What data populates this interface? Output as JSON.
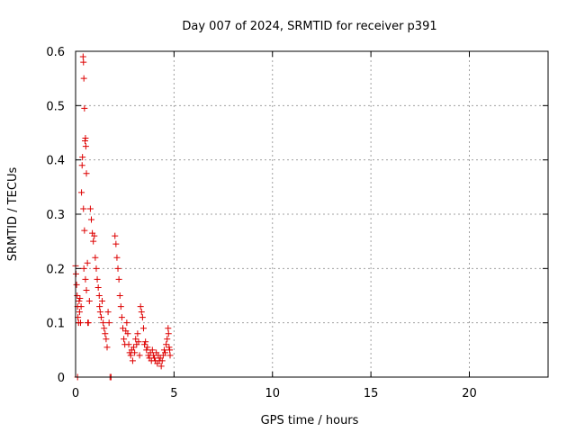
{
  "chart_data": {
    "type": "scatter",
    "title": "Day 007 of 2024, SRMTID for receiver p391",
    "xlabel": "GPS time / hours",
    "ylabel": "SRMTID / TECUs",
    "xlim": [
      0,
      24
    ],
    "ylim": [
      0,
      0.6
    ],
    "xticks": [
      0,
      5,
      10,
      15,
      20
    ],
    "xtick_labels": [
      "0",
      "5",
      "10",
      "15",
      "20"
    ],
    "yticks": [
      0,
      0.1,
      0.2,
      0.3,
      0.4,
      0.5,
      0.6
    ],
    "ytick_labels": [
      "0",
      "0.1",
      "0.2",
      "0.3",
      "0.4",
      "0.5",
      "0.6"
    ],
    "grid": true,
    "marker": "plus",
    "marker_color": "#dd0000",
    "series": [
      {
        "points": [
          [
            0.0,
            0.205
          ],
          [
            0.02,
            0.19
          ],
          [
            0.05,
            0.17
          ],
          [
            0.08,
            0.15
          ],
          [
            0.1,
            0.13
          ],
          [
            0.12,
            0.11
          ],
          [
            0.15,
            0.1
          ],
          [
            0.18,
            0.14
          ],
          [
            0.2,
            0.12
          ],
          [
            0.22,
            0.145
          ],
          [
            0.25,
            0.1
          ],
          [
            0.28,
            0.13
          ],
          [
            0.1,
            0.0
          ],
          [
            0.3,
            0.34
          ],
          [
            0.33,
            0.39
          ],
          [
            0.35,
            0.405
          ],
          [
            0.38,
            0.59
          ],
          [
            0.4,
            0.58
          ],
          [
            0.42,
            0.55
          ],
          [
            0.45,
            0.495
          ],
          [
            0.48,
            0.435
          ],
          [
            0.5,
            0.44
          ],
          [
            0.52,
            0.425
          ],
          [
            0.55,
            0.375
          ],
          [
            0.4,
            0.31
          ],
          [
            0.45,
            0.27
          ],
          [
            0.42,
            0.2
          ],
          [
            0.5,
            0.18
          ],
          [
            0.55,
            0.16
          ],
          [
            0.6,
            0.21
          ],
          [
            0.62,
            0.1
          ],
          [
            0.65,
            0.1
          ],
          [
            0.7,
            0.14
          ],
          [
            0.75,
            0.31
          ],
          [
            0.8,
            0.29
          ],
          [
            0.85,
            0.265
          ],
          [
            0.9,
            0.25
          ],
          [
            0.95,
            0.26
          ],
          [
            1.0,
            0.22
          ],
          [
            1.05,
            0.2
          ],
          [
            1.1,
            0.18
          ],
          [
            1.15,
            0.165
          ],
          [
            1.2,
            0.15
          ],
          [
            1.22,
            0.13
          ],
          [
            1.25,
            0.12
          ],
          [
            1.3,
            0.11
          ],
          [
            1.35,
            0.14
          ],
          [
            1.4,
            0.1
          ],
          [
            1.45,
            0.09
          ],
          [
            1.5,
            0.08
          ],
          [
            1.55,
            0.07
          ],
          [
            1.6,
            0.055
          ],
          [
            1.65,
            0.12
          ],
          [
            1.7,
            0.1
          ],
          [
            1.75,
            0.0
          ],
          [
            1.8,
            0.0
          ],
          [
            2.0,
            0.26
          ],
          [
            2.05,
            0.245
          ],
          [
            2.1,
            0.22
          ],
          [
            2.15,
            0.2
          ],
          [
            2.2,
            0.18
          ],
          [
            2.25,
            0.15
          ],
          [
            2.3,
            0.13
          ],
          [
            2.35,
            0.11
          ],
          [
            2.4,
            0.09
          ],
          [
            2.45,
            0.07
          ],
          [
            2.5,
            0.06
          ],
          [
            2.55,
            0.085
          ],
          [
            2.6,
            0.1
          ],
          [
            2.65,
            0.08
          ],
          [
            2.7,
            0.06
          ],
          [
            2.75,
            0.045
          ],
          [
            2.8,
            0.04
          ],
          [
            2.85,
            0.05
          ],
          [
            2.9,
            0.03
          ],
          [
            2.95,
            0.055
          ],
          [
            3.0,
            0.045
          ],
          [
            3.05,
            0.07
          ],
          [
            3.1,
            0.06
          ],
          [
            3.15,
            0.08
          ],
          [
            3.2,
            0.065
          ],
          [
            3.25,
            0.04
          ],
          [
            3.3,
            0.13
          ],
          [
            3.35,
            0.12
          ],
          [
            3.4,
            0.11
          ],
          [
            3.45,
            0.09
          ],
          [
            3.5,
            0.06
          ],
          [
            3.55,
            0.065
          ],
          [
            3.6,
            0.05
          ],
          [
            3.65,
            0.055
          ],
          [
            3.7,
            0.04
          ],
          [
            3.75,
            0.035
          ],
          [
            3.8,
            0.045
          ],
          [
            3.85,
            0.03
          ],
          [
            3.9,
            0.05
          ],
          [
            3.95,
            0.04
          ],
          [
            4.0,
            0.035
          ],
          [
            4.05,
            0.03
          ],
          [
            4.1,
            0.045
          ],
          [
            4.15,
            0.025
          ],
          [
            4.2,
            0.04
          ],
          [
            4.25,
            0.03
          ],
          [
            4.3,
            0.035
          ],
          [
            4.35,
            0.02
          ],
          [
            4.4,
            0.03
          ],
          [
            4.45,
            0.04
          ],
          [
            4.5,
            0.05
          ],
          [
            4.55,
            0.045
          ],
          [
            4.6,
            0.06
          ],
          [
            4.65,
            0.07
          ],
          [
            4.7,
            0.09
          ],
          [
            4.72,
            0.08
          ],
          [
            4.75,
            0.055
          ],
          [
            4.78,
            0.05
          ],
          [
            4.8,
            0.04
          ]
        ]
      }
    ]
  }
}
